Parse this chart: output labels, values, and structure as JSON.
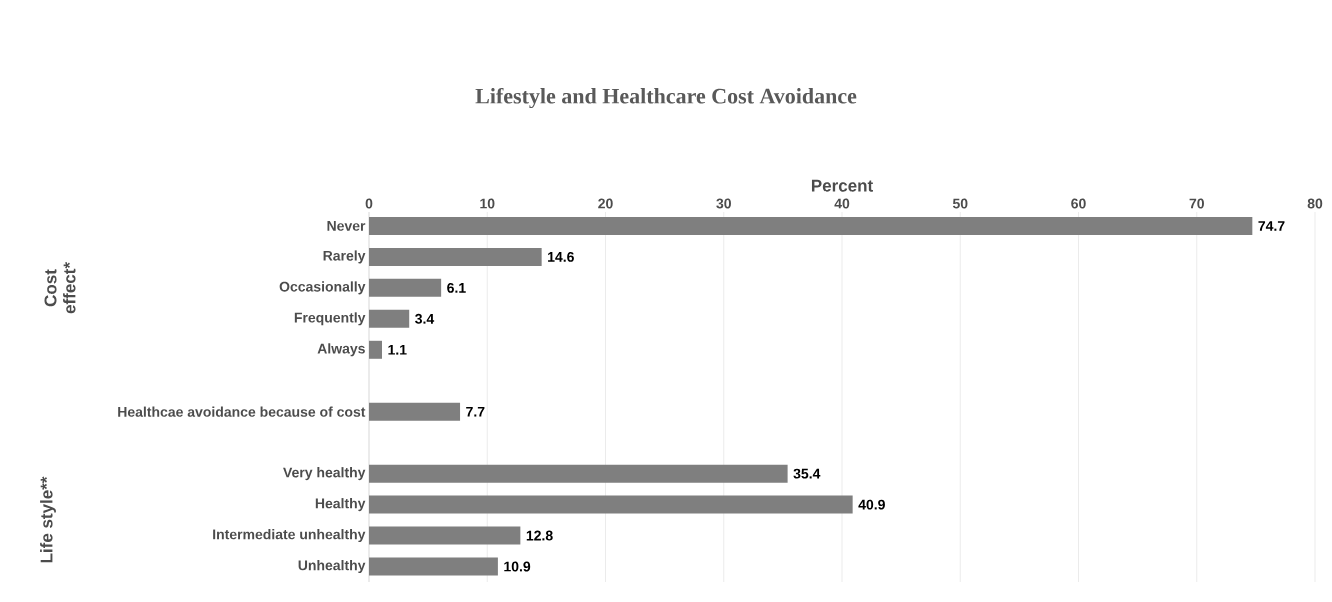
{
  "chart_data": {
    "type": "bar",
    "orientation": "horizontal",
    "title": "Lifestyle and Healthcare Cost Avoidance",
    "xlabel": "Percent",
    "categories": [
      "Never",
      "Rarely",
      "Occasionally",
      "Frequently",
      "Always",
      null,
      "Healthcae avoidance because of cost",
      null,
      "Very healthy",
      "Healthy",
      "Intermediate unhealthy",
      "Unhealthy"
    ],
    "values": [
      74.7,
      14.6,
      6.1,
      3.4,
      1.1,
      null,
      7.7,
      null,
      35.4,
      40.9,
      12.8,
      10.9
    ],
    "color": "#7f7f7f",
    "xlim": [
      0,
      80
    ],
    "xticks": [
      0,
      10,
      20,
      30,
      40,
      50,
      60,
      70,
      80
    ],
    "grid": "x",
    "data_labels": true,
    "annotations": [
      "Cost effect*",
      "Life style**"
    ]
  }
}
